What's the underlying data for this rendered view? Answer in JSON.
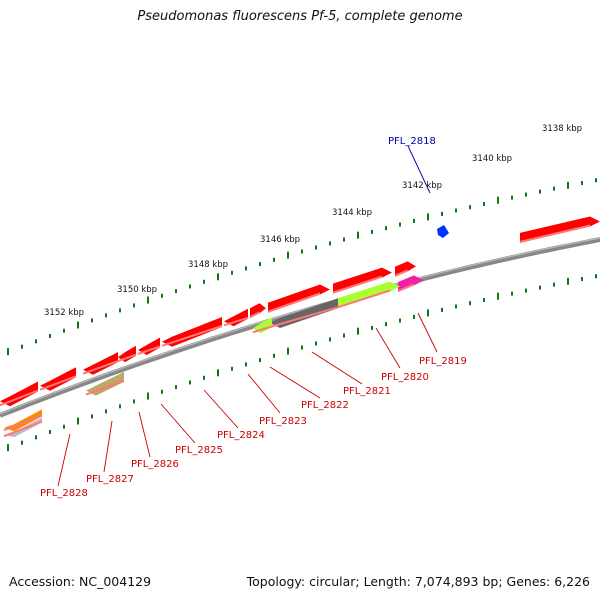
{
  "title": "Pseudomonas fluorescens Pf-5, complete genome",
  "footer": {
    "accession": "Accession: NC_004129",
    "summary": "Topology: circular; Length: 7,074,893 bp; Genes: 6,226"
  },
  "scale_labels": [
    {
      "label": "3138 kbp",
      "pos_kbp": 3138
    },
    {
      "label": "3140 kbp",
      "pos_kbp": 3140
    },
    {
      "label": "3142 kbp",
      "pos_kbp": 3142
    },
    {
      "label": "3144 kbp",
      "pos_kbp": 3144
    },
    {
      "label": "3146 kbp",
      "pos_kbp": 3146
    },
    {
      "label": "3148 kbp",
      "pos_kbp": 3148
    },
    {
      "label": "3150 kbp",
      "pos_kbp": 3150
    },
    {
      "label": "3152 kbp",
      "pos_kbp": 3152
    }
  ],
  "gene_labels": [
    "PFL_2818",
    "PFL_2819",
    "PFL_2820",
    "PFL_2821",
    "PFL_2822",
    "PFL_2823",
    "PFL_2824",
    "PFL_2825",
    "PFL_2826",
    "PFL_2827",
    "PFL_2828"
  ],
  "colors": {
    "cds": "#ff0000",
    "highlight_lime": "#aaff33",
    "dark_gray": "#666666",
    "magenta": "#ee22aa",
    "olive": "#bbaa66",
    "orange": "#ff8800",
    "backbone": "#888888",
    "tick": "#117711",
    "query_marker": "#0033ff"
  }
}
